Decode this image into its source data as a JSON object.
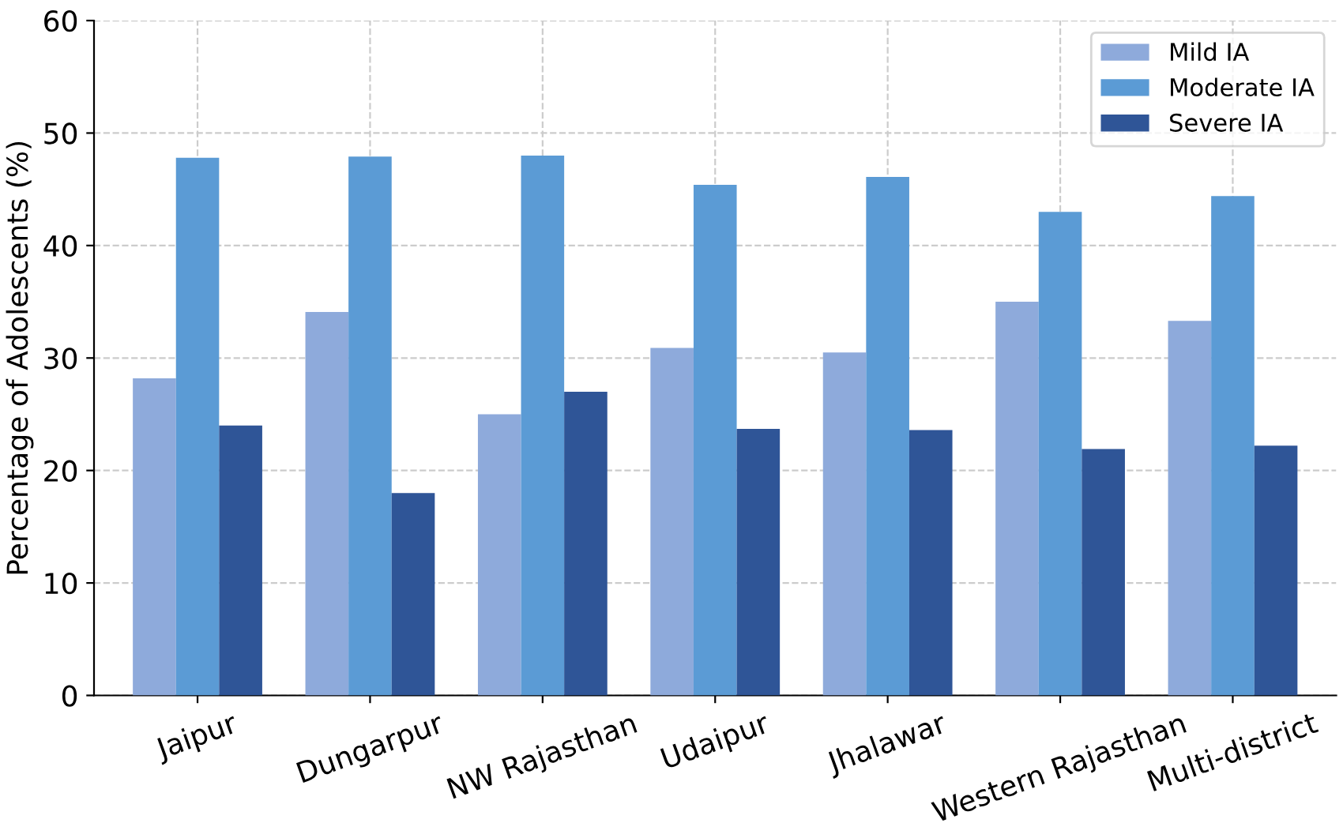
{
  "chart_data": {
    "type": "bar",
    "ylabel": "Percentage of Adolescents (%)",
    "categories": [
      "Jaipur",
      "Dungarpur",
      "NW Rajasthan",
      "Udaipur",
      "Jhalawar",
      "Western Rajasthan",
      "Multi-district"
    ],
    "series": [
      {
        "name": "Mild IA",
        "color": "#8eaadb",
        "values": [
          28.2,
          34.1,
          25.0,
          30.9,
          30.5,
          35.0,
          33.3
        ]
      },
      {
        "name": "Moderate IA",
        "color": "#5b9bd5",
        "values": [
          47.8,
          47.9,
          48.0,
          45.4,
          46.1,
          43.0,
          44.4
        ]
      },
      {
        "name": "Severe IA",
        "color": "#2f5597",
        "values": [
          24.0,
          18.0,
          27.0,
          23.7,
          23.6,
          21.9,
          22.2
        ]
      }
    ],
    "ylim": [
      0,
      60
    ],
    "yticks": [
      0,
      10,
      20,
      30,
      40,
      50,
      60
    ],
    "grid": true,
    "legend": "top right"
  }
}
